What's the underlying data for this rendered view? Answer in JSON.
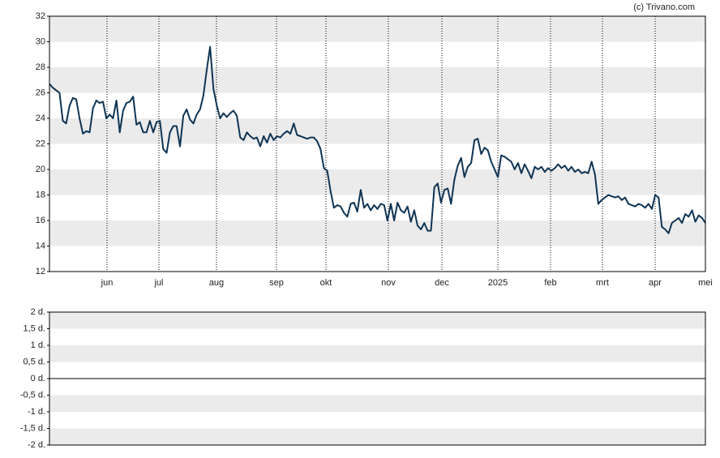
{
  "chart_data": [
    {
      "type": "line",
      "source": "(c) Trivano.com",
      "xticks": [
        "jun",
        "jul",
        "aug",
        "sep",
        "okt",
        "nov",
        "dec",
        "2025",
        "feb",
        "mrt",
        "apr",
        "mei"
      ],
      "ylim": [
        12,
        32
      ],
      "yticks": [
        12,
        14,
        16,
        18,
        20,
        22,
        24,
        26,
        28,
        30,
        32
      ],
      "grid": true,
      "color": "#0f3454",
      "values": [
        26.7,
        26.4,
        26.2,
        26.0,
        23.8,
        23.6,
        25.0,
        25.6,
        25.5,
        24.0,
        22.8,
        23.0,
        22.9,
        24.8,
        25.4,
        25.2,
        25.3,
        24.0,
        24.3,
        24.0,
        25.4,
        22.9,
        24.6,
        25.2,
        25.3,
        25.7,
        23.5,
        23.7,
        22.9,
        22.9,
        23.8,
        22.9,
        23.7,
        23.8,
        21.6,
        21.3,
        22.9,
        23.4,
        23.4,
        21.8,
        24.2,
        24.7,
        23.9,
        23.6,
        24.3,
        24.7,
        25.8,
        27.8,
        29.6,
        26.3,
        25.0,
        24.0,
        24.4,
        24.1,
        24.4,
        24.6,
        24.2,
        22.5,
        22.3,
        22.9,
        22.6,
        22.4,
        22.5,
        21.8,
        22.6,
        22.1,
        22.8,
        22.3,
        22.6,
        22.5,
        22.8,
        23.0,
        22.8,
        23.6,
        22.7,
        22.6,
        22.5,
        22.4,
        22.5,
        22.5,
        22.2,
        21.6,
        20.1,
        19.9,
        18.3,
        17.0,
        17.2,
        17.1,
        16.6,
        16.3,
        17.3,
        17.4,
        16.7,
        18.4,
        17.0,
        17.3,
        16.8,
        17.2,
        16.9,
        17.3,
        17.2,
        16.0,
        17.3,
        16.0,
        17.4,
        16.8,
        16.6,
        17.1,
        15.9,
        16.8,
        15.6,
        15.3,
        15.8,
        15.2,
        15.2,
        18.6,
        18.9,
        17.4,
        18.4,
        18.5,
        17.3,
        19.2,
        20.3,
        20.9,
        19.4,
        20.2,
        20.5,
        22.3,
        22.4,
        21.2,
        21.7,
        21.5,
        20.6,
        20.0,
        19.4,
        21.1,
        21.0,
        20.8,
        20.6,
        20.0,
        20.5,
        19.7,
        20.4,
        19.9,
        19.3,
        20.2,
        20.0,
        20.2,
        19.8,
        20.1,
        19.9,
        20.1,
        20.4,
        20.1,
        20.3,
        19.9,
        20.2,
        19.8,
        20.0,
        19.7,
        19.8,
        19.7,
        20.6,
        19.6,
        17.3,
        17.6,
        17.8,
        18.0,
        17.9,
        17.8,
        17.9,
        17.6,
        17.8,
        17.3,
        17.2,
        17.1,
        17.3,
        17.2,
        17.0,
        17.3,
        16.9,
        18.0,
        17.8,
        15.5,
        15.3,
        15.0,
        15.8,
        16.0,
        16.2,
        15.8,
        16.5,
        16.3,
        16.8,
        15.9,
        16.4,
        16.2,
        15.8
      ]
    },
    {
      "type": "line",
      "ylim": [
        -2,
        2
      ],
      "grid": true,
      "yticks": [
        {
          "value": 2,
          "label": "2 d."
        },
        {
          "value": 1.5,
          "label": "1,5 d."
        },
        {
          "value": 1,
          "label": "1 d."
        },
        {
          "value": 0.5,
          "label": "0,5 d."
        },
        {
          "value": 0,
          "label": "0 d."
        },
        {
          "value": -0.5,
          "label": "-0,5 d."
        },
        {
          "value": -1,
          "label": "-1 d."
        },
        {
          "value": -1.5,
          "label": "-1,5 d."
        },
        {
          "value": -2,
          "label": "-2 d."
        }
      ]
    }
  ]
}
